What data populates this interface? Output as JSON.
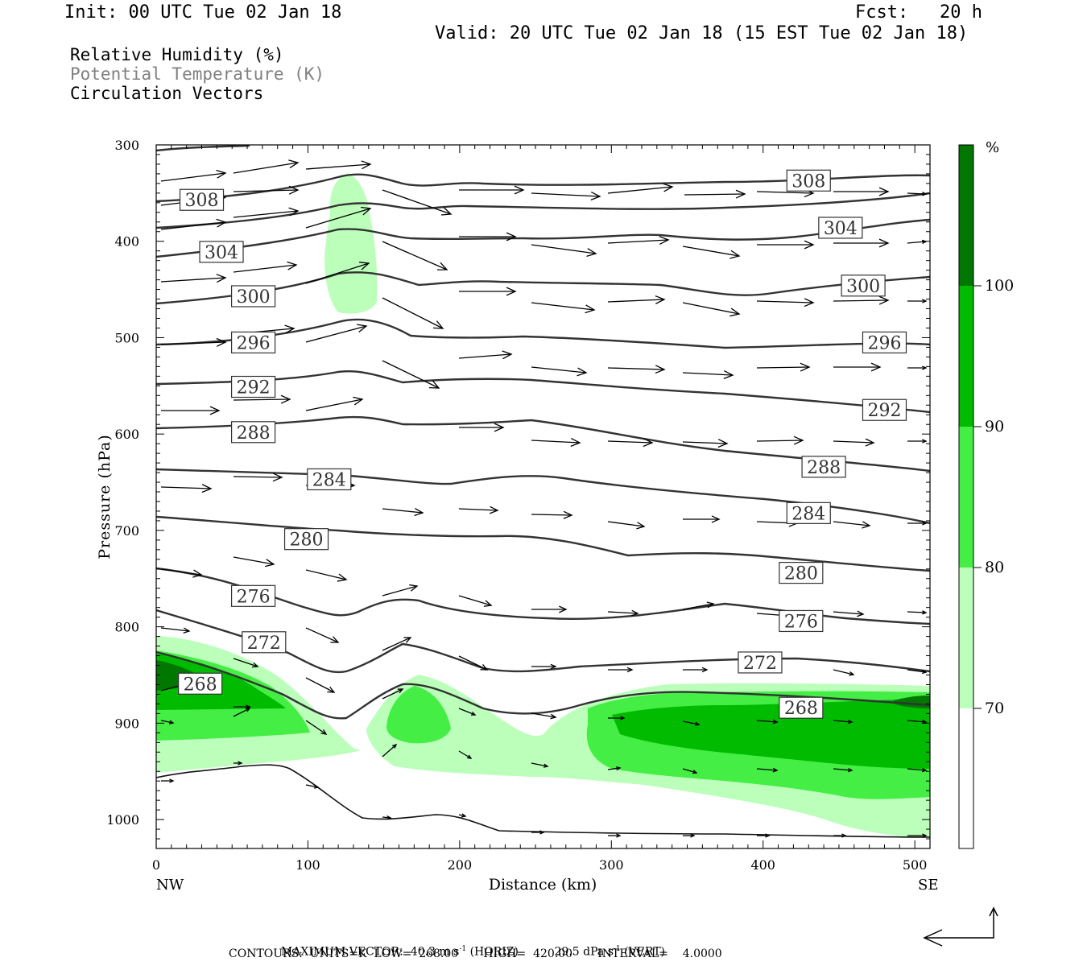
{
  "header": {
    "init": "Init: 00 UTC Tue 02 Jan 18",
    "fcst_label": "Fcst:",
    "fcst_value": "20 h",
    "valid": "Valid: 20 UTC Tue 02 Jan 18 (15 EST Tue 02 Jan 18)"
  },
  "legend": {
    "rh": "Relative Humidity (%)",
    "theta": "Potential Temperature (K)",
    "vectors": "Circulation Vectors"
  },
  "footer": {
    "line1_label": "MAXIMUM VECTOR:",
    "horiz_value": "40.3 m s",
    "horiz_exp": "-1",
    "horiz_tag": "(HORIZ)",
    "vert_value": "29.5 dPa s",
    "vert_exp": "-1",
    "vert_tag": "(VERT)",
    "line2": "CONTOURS:  UNITS=K  LOW=  268.00       HIGH=  420.00       INTERVAL=    4.0000"
  },
  "chart_data": {
    "type": "heatmap",
    "xlabel": "Distance (km)",
    "ylabel": "Pressure (hPa)",
    "xlim": [
      0,
      510
    ],
    "ylim": [
      1030,
      300
    ],
    "x_ticks": [
      "0",
      "100",
      "200",
      "300",
      "400",
      "500"
    ],
    "y_ticks": [
      "300",
      "400",
      "500",
      "600",
      "700",
      "800",
      "900",
      "1000"
    ],
    "x_end_labels": {
      "left": "NW",
      "right": "SE"
    },
    "colorbar": {
      "unit": "%",
      "levels": [
        70,
        80,
        90,
        100
      ],
      "colors": [
        "#ffffff",
        "#bbffbb",
        "#44ee44",
        "#00bb00",
        "#007700"
      ]
    },
    "theta_contours": [
      {
        "label": "308",
        "x": 30,
        "p": 357
      },
      {
        "label": "308",
        "x": 430,
        "p": 337
      },
      {
        "label": "304",
        "x": 43,
        "p": 411
      },
      {
        "label": "304",
        "x": 451,
        "p": 386
      },
      {
        "label": "300",
        "x": 64,
        "p": 457
      },
      {
        "label": "300",
        "x": 466,
        "p": 446
      },
      {
        "label": "296",
        "x": 64,
        "p": 505
      },
      {
        "label": "296",
        "x": 480,
        "p": 505
      },
      {
        "label": "292",
        "x": 64,
        "p": 551
      },
      {
        "label": "292",
        "x": 480,
        "p": 575
      },
      {
        "label": "288",
        "x": 64,
        "p": 598
      },
      {
        "label": "288",
        "x": 440,
        "p": 634
      },
      {
        "label": "284",
        "x": 114,
        "p": 647
      },
      {
        "label": "284",
        "x": 430,
        "p": 682
      },
      {
        "label": "280",
        "x": 99,
        "p": 709
      },
      {
        "label": "280",
        "x": 425,
        "p": 744
      },
      {
        "label": "276",
        "x": 64,
        "p": 768
      },
      {
        "label": "276",
        "x": 425,
        "p": 794
      },
      {
        "label": "272",
        "x": 71,
        "p": 816
      },
      {
        "label": "272",
        "x": 398,
        "p": 837
      },
      {
        "label": "268",
        "x": 29,
        "p": 859
      },
      {
        "label": "268",
        "x": 425,
        "p": 884
      }
    ],
    "terrain_surface": "terrain line from ~968 hPa at NW rising to ~958 hPa near 70 km then descending to ~1026 hPa beyond 230 km"
  }
}
